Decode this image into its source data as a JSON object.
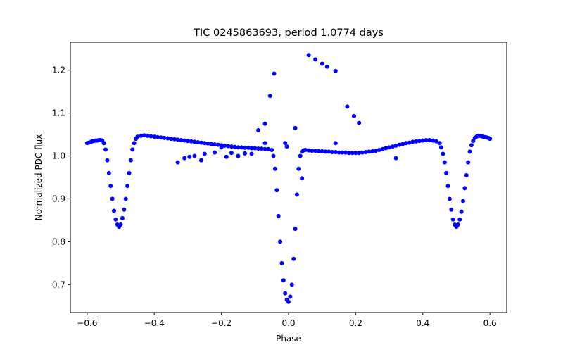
{
  "chart_data": {
    "type": "scatter",
    "title": "TIC 0245863693, period 1.0774 days",
    "xlabel": "Phase",
    "ylabel": "Normalized PDC flux",
    "xlim": [
      -0.65,
      0.65
    ],
    "ylim": [
      0.635,
      1.265
    ],
    "xticks": [
      -0.6,
      -0.4,
      -0.2,
      0.0,
      0.2,
      0.4,
      0.6
    ],
    "xtick_labels": [
      "−0.6",
      "−0.4",
      "−0.2",
      "0.0",
      "0.2",
      "0.4",
      "0.6"
    ],
    "yticks": [
      0.7,
      0.8,
      0.9,
      1.0,
      1.1,
      1.2
    ],
    "ytick_labels": [
      "0.7",
      "0.8",
      "0.9",
      "1.0",
      "1.1",
      "1.2"
    ],
    "grid": false,
    "legend": "none",
    "marker_color": "#0000ff",
    "series": [
      {
        "x": [
          -0.6,
          -0.595,
          -0.59,
          -0.585,
          -0.58,
          -0.575,
          -0.57,
          -0.565,
          -0.56,
          -0.555,
          -0.55,
          -0.545,
          -0.54,
          -0.535,
          -0.53,
          -0.525,
          -0.52,
          -0.515,
          -0.51,
          -0.505,
          -0.5,
          -0.495,
          -0.49,
          -0.485,
          -0.48,
          -0.475,
          -0.47,
          -0.465,
          -0.46,
          -0.455,
          -0.45,
          -0.44,
          -0.43,
          -0.42,
          -0.41,
          -0.4,
          -0.39,
          -0.38,
          -0.37,
          -0.36,
          -0.35,
          -0.34,
          -0.33,
          -0.32,
          -0.31,
          -0.3,
          -0.29,
          -0.28,
          -0.27,
          -0.26,
          -0.25,
          -0.24,
          -0.23,
          -0.22,
          -0.21,
          -0.2,
          -0.19,
          -0.18,
          -0.17,
          -0.16,
          -0.15,
          -0.14,
          -0.13,
          -0.12,
          -0.11,
          -0.1,
          -0.09,
          -0.08,
          -0.07,
          -0.06,
          -0.05,
          -0.045,
          -0.04,
          -0.035,
          -0.03,
          -0.025,
          -0.02,
          -0.015,
          -0.01,
          -0.005,
          0.0,
          0.005,
          0.01,
          0.015,
          0.02,
          0.025,
          0.03,
          0.035,
          0.04,
          0.045,
          0.05,
          0.06,
          0.07,
          0.08,
          0.09,
          0.1,
          0.11,
          0.12,
          0.13,
          0.14,
          0.15,
          0.16,
          0.17,
          0.18,
          0.19,
          0.2,
          0.21,
          0.22,
          0.23,
          0.24,
          0.25,
          0.26,
          0.27,
          0.28,
          0.29,
          0.3,
          0.31,
          0.32,
          0.33,
          0.34,
          0.35,
          0.36,
          0.37,
          0.38,
          0.39,
          0.4,
          0.41,
          0.42,
          0.43,
          0.44,
          0.45,
          0.455,
          0.46,
          0.465,
          0.47,
          0.475,
          0.48,
          0.485,
          0.49,
          0.495,
          0.5,
          0.505,
          0.51,
          0.515,
          0.52,
          0.525,
          0.53,
          0.535,
          0.54,
          0.545,
          0.55,
          0.555,
          0.56,
          0.565,
          0.57,
          0.575,
          0.58,
          0.585,
          0.59,
          0.595,
          0.6,
          -0.33,
          -0.31,
          -0.295,
          -0.28,
          -0.26,
          -0.25,
          -0.22,
          -0.2,
          -0.185,
          -0.17,
          -0.15,
          -0.13,
          -0.11,
          -0.005,
          0.02,
          -0.09,
          -0.07,
          -0.055,
          -0.043,
          0.04,
          0.06,
          0.08,
          0.1,
          0.115,
          0.14,
          0.175,
          0.195,
          0.21,
          0.14,
          0.32,
          -0.07,
          -0.01
        ],
        "y": [
          1.03,
          1.031,
          1.032,
          1.034,
          1.035,
          1.036,
          1.036,
          1.037,
          1.037,
          1.036,
          1.03,
          1.015,
          0.99,
          0.96,
          0.93,
          0.9,
          0.872,
          0.852,
          0.84,
          0.835,
          0.84,
          0.855,
          0.875,
          0.9,
          0.93,
          0.96,
          0.99,
          1.015,
          1.03,
          1.04,
          1.045,
          1.047,
          1.048,
          1.047,
          1.046,
          1.045,
          1.044,
          1.043,
          1.042,
          1.041,
          1.04,
          1.039,
          1.038,
          1.037,
          1.036,
          1.035,
          1.034,
          1.033,
          1.032,
          1.031,
          1.03,
          1.029,
          1.028,
          1.027,
          1.026,
          1.025,
          1.024,
          1.023,
          1.022,
          1.021,
          1.02,
          1.02,
          1.019,
          1.019,
          1.018,
          1.018,
          1.017,
          1.017,
          1.016,
          1.016,
          1.014,
          1.0,
          0.97,
          0.92,
          0.86,
          0.8,
          0.75,
          0.71,
          0.68,
          0.665,
          0.66,
          0.672,
          0.7,
          0.76,
          0.83,
          0.91,
          0.97,
          1.0,
          1.01,
          1.013,
          1.014,
          1.013,
          1.012,
          1.012,
          1.011,
          1.011,
          1.01,
          1.01,
          1.009,
          1.009,
          1.008,
          1.008,
          1.008,
          1.007,
          1.007,
          1.007,
          1.007,
          1.008,
          1.009,
          1.01,
          1.011,
          1.012,
          1.014,
          1.016,
          1.018,
          1.02,
          1.022,
          1.024,
          1.026,
          1.028,
          1.03,
          1.031,
          1.033,
          1.034,
          1.035,
          1.036,
          1.037,
          1.037,
          1.036,
          1.034,
          1.03,
          1.02,
          1.005,
          0.985,
          0.96,
          0.93,
          0.9,
          0.875,
          0.852,
          0.84,
          0.835,
          0.84,
          0.852,
          0.87,
          0.895,
          0.925,
          0.955,
          0.985,
          1.01,
          1.025,
          1.035,
          1.042,
          1.045,
          1.047,
          1.047,
          1.046,
          1.045,
          1.044,
          1.043,
          1.042,
          1.04,
          0.985,
          0.995,
          0.998,
          1.0,
          0.99,
          1.005,
          1.008,
          1.02,
          0.998,
          1.007,
          1.0,
          1.006,
          1.005,
          1.022,
          1.065,
          1.06,
          1.075,
          1.14,
          1.192,
          0.948,
          1.235,
          1.225,
          1.215,
          1.208,
          1.198,
          1.115,
          1.093,
          1.077,
          1.03,
          0.995,
          1.03,
          1.03
        ]
      }
    ]
  }
}
